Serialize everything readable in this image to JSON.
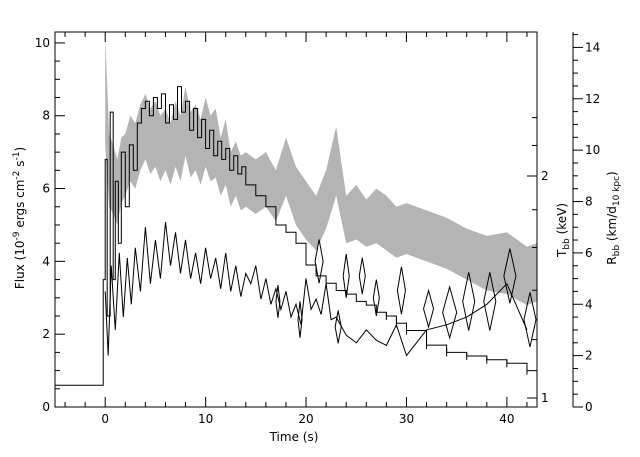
{
  "chart_data": {
    "type": "line",
    "title": "",
    "xlabel": "Time (s)",
    "ylabel_left": {
      "main": "Flux (10",
      "exp1": "-9",
      "mid1": " ergs cm",
      "exp2": "-2",
      "mid2": " s",
      "exp3": "-1",
      "end": ")"
    },
    "ylabel_right_inner": {
      "main": "T",
      "sub": "bb",
      "end": " (keV)"
    },
    "ylabel_right_outer": {
      "main": "R",
      "sub": "bb",
      "mid": " (km/d",
      "sub2": "10 kpc",
      "end": ")"
    },
    "xlim": [
      -5,
      43
    ],
    "ylim_flux": [
      0,
      10.3
    ],
    "ylim_radius": [
      0,
      14.6
    ],
    "x_ticks": [
      {
        "v": 0,
        "l": "0"
      },
      {
        "v": 10,
        "l": "10"
      },
      {
        "v": 20,
        "l": "20"
      },
      {
        "v": 30,
        "l": "30"
      },
      {
        "v": 40,
        "l": "40"
      }
    ],
    "y_flux_ticks": [
      {
        "v": 0,
        "l": "0"
      },
      {
        "v": 2,
        "l": "2"
      },
      {
        "v": 4,
        "l": "4"
      },
      {
        "v": 6,
        "l": "6"
      },
      {
        "v": 8,
        "l": "8"
      },
      {
        "v": 10,
        "l": "10"
      }
    ],
    "y_radius_ticks": [
      {
        "v": 0,
        "l": "0"
      },
      {
        "v": 2,
        "l": "2"
      },
      {
        "v": 4,
        "l": "4"
      },
      {
        "v": 6,
        "l": "6"
      },
      {
        "v": 8,
        "l": "8"
      },
      {
        "v": 10,
        "l": "10"
      },
      {
        "v": 12,
        "l": "12"
      },
      {
        "v": 14,
        "l": "14"
      }
    ],
    "y_temp_ticks": [
      {
        "v": 1,
        "l": "1"
      },
      {
        "v": 2,
        "l": "2"
      }
    ],
    "flux_series": {
      "name": "",
      "x": [
        -5,
        -0.2,
        -0.2,
        0,
        0.2,
        0.5,
        0.8,
        1,
        1.3,
        1.6,
        2,
        2.4,
        2.8,
        3.2,
        3.6,
        4,
        4.4,
        4.8,
        5.2,
        5.6,
        6,
        6.4,
        6.8,
        7.2,
        7.6,
        8,
        8.4,
        8.8,
        9.2,
        9.6,
        10,
        10.4,
        10.8,
        11.2,
        11.6,
        12,
        12.4,
        12.8,
        13.2,
        13.6,
        14,
        15,
        16,
        17,
        18,
        19,
        20,
        21,
        22,
        23,
        24,
        25,
        26,
        27,
        28,
        29,
        30,
        32,
        34,
        36,
        38,
        40,
        42,
        43
      ],
      "y": [
        0.6,
        0.6,
        3.5,
        6.8,
        2.5,
        8.1,
        3.5,
        6.2,
        4.5,
        7.0,
        5.5,
        7.2,
        6.5,
        7.8,
        8.2,
        8.4,
        8.0,
        8.5,
        8.2,
        8.6,
        7.8,
        8.3,
        7.9,
        8.8,
        8.1,
        8.4,
        7.6,
        8.2,
        7.4,
        7.9,
        7.1,
        7.6,
        6.9,
        7.3,
        6.8,
        7.1,
        6.5,
        6.9,
        6.4,
        6.6,
        6.1,
        5.8,
        5.5,
        5.0,
        4.8,
        4.5,
        3.9,
        3.6,
        3.4,
        3.2,
        3.1,
        2.9,
        2.8,
        2.6,
        2.5,
        2.3,
        2.1,
        1.7,
        1.5,
        1.4,
        1.3,
        1.2,
        1.0,
        0.9
      ]
    },
    "radius_series": {
      "name": "",
      "x": [
        0,
        0.3,
        0.6,
        1,
        1.4,
        1.8,
        2.2,
        2.6,
        3,
        3.5,
        4,
        4.5,
        5,
        5.5,
        6,
        6.5,
        7,
        7.5,
        8,
        8.5,
        9,
        9.5,
        10,
        10.5,
        11,
        11.5,
        12,
        12.5,
        13,
        13.5,
        14,
        14.5,
        15,
        15.5,
        16,
        16.5,
        17,
        17.5,
        18,
        18.5,
        19,
        19.5,
        20,
        20.5,
        21,
        21.5,
        22,
        22.5,
        23,
        24,
        25,
        26,
        27,
        28,
        29,
        30,
        32,
        34,
        36,
        38,
        40,
        42
      ],
      "y": [
        4.5,
        2.0,
        5.5,
        3.0,
        6.0,
        3.5,
        5.8,
        4.0,
        6.2,
        4.5,
        7.0,
        4.8,
        6.5,
        5.0,
        7.2,
        5.5,
        6.8,
        5.2,
        6.5,
        5.0,
        6.0,
        4.8,
        6.2,
        5.0,
        5.8,
        4.6,
        6.0,
        4.5,
        5.5,
        4.3,
        5.2,
        4.8,
        5.5,
        4.2,
        5.0,
        4.0,
        4.6,
        3.8,
        4.5,
        3.5,
        4.0,
        3.2,
        5.0,
        3.8,
        4.2,
        3.6,
        4.8,
        3.4,
        3.5,
        2.8,
        2.5,
        3.0,
        2.6,
        2.4,
        3.2,
        2.0,
        3.0,
        3.2,
        3.5,
        4.0,
        4.8,
        3.0
      ]
    },
    "temperature_band": {
      "name": "",
      "x": [
        0,
        0.4,
        0.8,
        1.2,
        1.6,
        2,
        2.5,
        3,
        3.5,
        4,
        4.5,
        5,
        5.5,
        6,
        6.5,
        7,
        7.5,
        8,
        8.5,
        9,
        9.5,
        10,
        10.5,
        11,
        11.5,
        12,
        12.5,
        13,
        13.5,
        14,
        15,
        16,
        17,
        18,
        19,
        20,
        21,
        22,
        23,
        24,
        25,
        26,
        27,
        28,
        29,
        30,
        32,
        34,
        36,
        38,
        40,
        42,
        43
      ],
      "upper": [
        10.2,
        7.5,
        7.2,
        6.8,
        7.4,
        7.5,
        8.0,
        7.8,
        8.3,
        8.6,
        8.2,
        8.4,
        8.0,
        8.2,
        7.8,
        8.4,
        8.0,
        8.8,
        8.1,
        8.3,
        7.9,
        8.5,
        8.0,
        8.2,
        7.4,
        7.9,
        7.0,
        7.3,
        6.9,
        7.0,
        6.8,
        7.0,
        6.5,
        7.4,
        6.6,
        6.2,
        5.8,
        6.5,
        7.7,
        5.8,
        6.1,
        5.7,
        6.0,
        5.8,
        5.5,
        5.6,
        5.4,
        5.2,
        4.9,
        4.7,
        4.8,
        4.4,
        4.5
      ],
      "lower": [
        7.2,
        5.5,
        5.3,
        5.0,
        5.6,
        5.8,
        6.2,
        6.0,
        6.5,
        6.8,
        6.4,
        6.6,
        6.2,
        6.5,
        6.1,
        6.6,
        6.2,
        6.9,
        6.3,
        6.5,
        6.1,
        6.6,
        6.2,
        6.3,
        5.8,
        6.1,
        5.5,
        5.8,
        5.4,
        5.5,
        5.3,
        5.5,
        5.1,
        5.8,
        5.0,
        4.6,
        4.3,
        4.9,
        5.8,
        4.5,
        4.6,
        4.4,
        4.5,
        4.3,
        4.1,
        4.2,
        4.0,
        3.8,
        3.5,
        3.2,
        3.1,
        2.8,
        2.9
      ]
    },
    "diamond_points": [
      {
        "x": 17.2,
        "y": 2.9,
        "w": 0.4,
        "h": 0.9
      },
      {
        "x": 19.4,
        "y": 2.4,
        "w": 0.4,
        "h": 1.0
      },
      {
        "x": 21.3,
        "y": 4.0,
        "w": 0.8,
        "h": 1.2
      },
      {
        "x": 23.2,
        "y": 2.2,
        "w": 0.6,
        "h": 0.9
      },
      {
        "x": 24.0,
        "y": 3.6,
        "w": 0.6,
        "h": 1.2
      },
      {
        "x": 25.6,
        "y": 3.6,
        "w": 0.6,
        "h": 1.0
      },
      {
        "x": 27.0,
        "y": 3.0,
        "w": 0.6,
        "h": 1.0
      },
      {
        "x": 29.5,
        "y": 3.2,
        "w": 0.8,
        "h": 1.3
      },
      {
        "x": 32.2,
        "y": 2.7,
        "w": 1.0,
        "h": 1.0
      },
      {
        "x": 34.3,
        "y": 2.6,
        "w": 1.4,
        "h": 1.4
      },
      {
        "x": 36.2,
        "y": 2.9,
        "w": 1.2,
        "h": 1.6
      },
      {
        "x": 38.3,
        "y": 2.9,
        "w": 1.2,
        "h": 1.6
      },
      {
        "x": 40.3,
        "y": 3.6,
        "w": 1.2,
        "h": 1.5
      },
      {
        "x": 42.3,
        "y": 2.4,
        "w": 1.2,
        "h": 1.5
      }
    ],
    "colors": {
      "band": "#b4b4b4",
      "line": "#000000",
      "axis": "#000000"
    }
  }
}
